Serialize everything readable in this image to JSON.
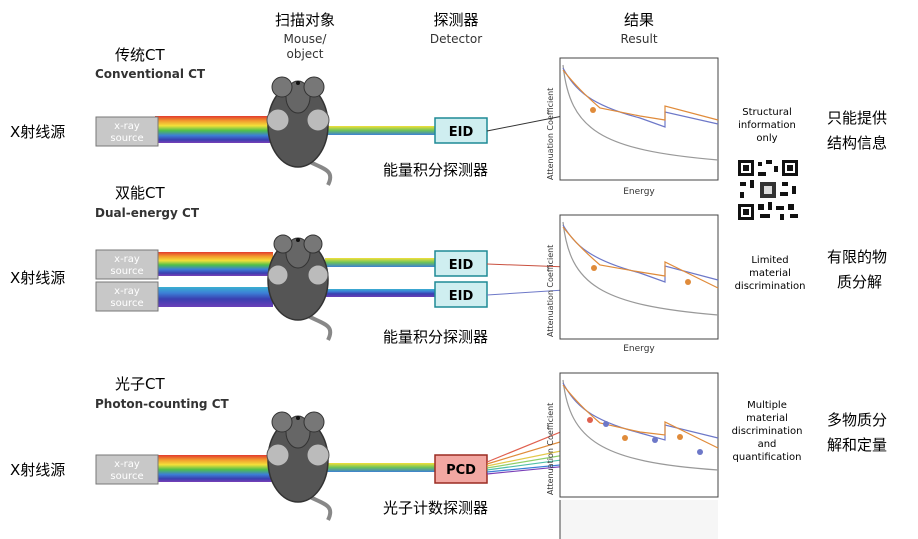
{
  "headers": {
    "object_zh": "扫描对象",
    "object_en1": "Mouse/",
    "object_en2": "object",
    "detector_zh": "探测器",
    "detector_en": "Detector",
    "result_zh": "结果",
    "result_en": "Result"
  },
  "rows": [
    {
      "title_zh": "传统CT",
      "title_en": "Conventional CT",
      "source_label": "X射线源",
      "sources": [
        {
          "line1": "x-ray",
          "line2": "source"
        }
      ],
      "detectors": [
        "EID"
      ],
      "detector_caption": "能量积分探测器",
      "note": [
        "Structural",
        "information",
        "only"
      ],
      "summary": [
        "只能提供",
        "结构信息"
      ],
      "x_axis": "Energy",
      "y_axis": "Attenuation Coefficient"
    },
    {
      "title_zh": "双能CT",
      "title_en": "Dual-energy CT",
      "source_label": "X射线源",
      "sources": [
        {
          "line1": "x-ray",
          "line2": "source"
        },
        {
          "line1": "x-ray",
          "line2": "source"
        }
      ],
      "detectors": [
        "EID",
        "EID"
      ],
      "detector_caption": "能量积分探测器",
      "note": [
        "Limited",
        "material",
        "discrimination"
      ],
      "summary": [
        "有限的物",
        "质分解"
      ],
      "x_axis": "Energy",
      "y_axis": "Attenuation Coefficient"
    },
    {
      "title_zh": "光子CT",
      "title_en": "Photon-counting CT",
      "source_label": "X射线源",
      "sources": [
        {
          "line1": "x-ray",
          "line2": "source"
        }
      ],
      "detectors": [
        "PCD"
      ],
      "detector_caption": "光子计数探测器",
      "note": [
        "Multiple",
        "material",
        "discrimination",
        "and",
        "quantification"
      ],
      "summary": [
        "多物质分",
        "解和定量"
      ],
      "x_axis": "",
      "y_axis": "Attenuation Coefficient"
    }
  ],
  "colors": {
    "eid_fill": "#cfeef0",
    "pcd_fill": "#f2a7a2",
    "source_fill": "#c8c8c8",
    "curve_orange": "#e08b3a",
    "curve_blue": "#6d78c8",
    "curve_gray": "#999999"
  },
  "icons": [
    "mouse-icon",
    "qr-code-icon"
  ]
}
